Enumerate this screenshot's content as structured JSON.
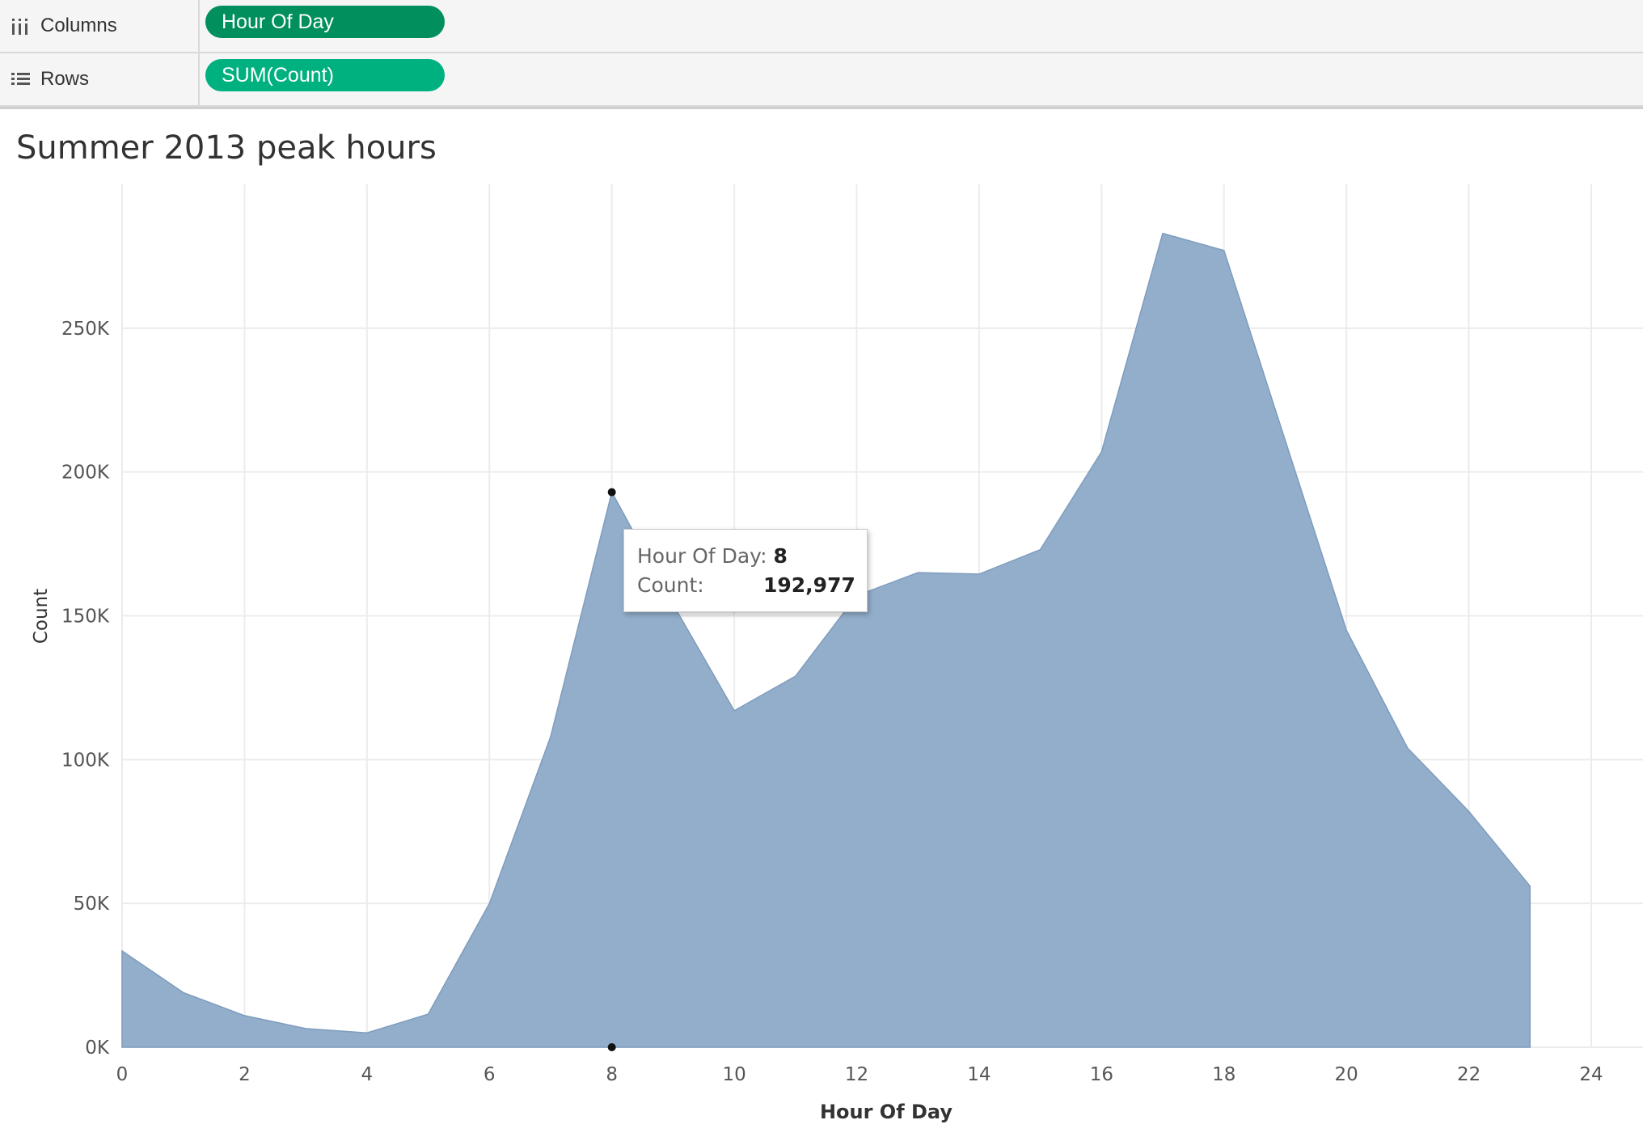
{
  "shelves": {
    "columns": {
      "label": "Columns",
      "pill": "Hour Of Day",
      "icon": "columns-icon",
      "pill_color": "#008f5d"
    },
    "rows": {
      "label": "Rows",
      "pill": "SUM(Count)",
      "icon": "rows-icon",
      "pill_color": "#00b180"
    }
  },
  "colors": {
    "area": "#93aecb",
    "area_stroke": "#7e9cbd",
    "grid": "#ececec"
  },
  "tooltip": {
    "hour_label": "Hour Of Day:",
    "hour_value": "8",
    "count_label": "Count:",
    "count_value": "192,977"
  },
  "chart_data": {
    "type": "area",
    "title": "Summer 2013 peak hours",
    "xlabel": "Hour Of Day",
    "ylabel": "Count",
    "xlim": [
      0,
      24
    ],
    "ylim": [
      0,
      300000
    ],
    "grid": true,
    "x_ticks": [
      0,
      2,
      4,
      6,
      8,
      10,
      12,
      14,
      16,
      18,
      20,
      22,
      24
    ],
    "y_ticks": [
      0,
      50000,
      100000,
      150000,
      200000,
      250000
    ],
    "y_tick_labels": [
      "0K",
      "50K",
      "100K",
      "150K",
      "200K",
      "250K"
    ],
    "x": [
      0,
      1,
      2,
      3,
      4,
      5,
      6,
      7,
      8,
      9,
      10,
      11,
      12,
      13,
      14,
      15,
      16,
      17,
      18,
      19,
      20,
      21,
      22,
      23
    ],
    "values": [
      33500,
      19000,
      11000,
      6500,
      5000,
      11500,
      50000,
      108000,
      192977,
      154000,
      117000,
      129000,
      157000,
      165000,
      164500,
      173000,
      207000,
      283000,
      277000,
      211000,
      145000,
      104000,
      82000,
      56000
    ],
    "highlight_x": 8
  }
}
